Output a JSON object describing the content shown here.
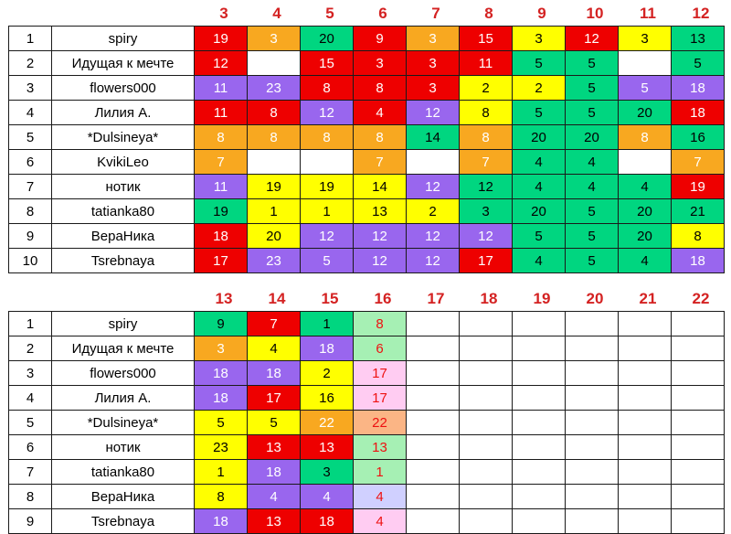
{
  "colors": {
    "R": "#ee0000",
    "O": "#f8a820",
    "G": "#00d680",
    "Y": "#ffff00",
    "P": "#9966ee",
    "W": "#ffffff",
    "LP": "#ffccf2",
    "LO": "#fbb585",
    "LL": "#d0d0ff",
    "LG": "#a6f0b4",
    "header_red": "#d42222"
  },
  "tables": [
    {
      "rounds": [
        "3",
        "4",
        "5",
        "6",
        "7",
        "8",
        "9",
        "10",
        "11",
        "12"
      ],
      "rows": [
        {
          "rank": "1",
          "name": "spiry",
          "cells": [
            [
              "19",
              "R"
            ],
            [
              "3",
              "O"
            ],
            [
              "20",
              "G"
            ],
            [
              "9",
              "R"
            ],
            [
              "3",
              "O"
            ],
            [
              "15",
              "R"
            ],
            [
              "3",
              "Y"
            ],
            [
              "12",
              "R"
            ],
            [
              "3",
              "Y"
            ],
            [
              "13",
              "G"
            ]
          ]
        },
        {
          "rank": "2",
          "name": "Идущая к мечте",
          "cells": [
            [
              "12",
              "R"
            ],
            [
              "",
              "W"
            ],
            [
              "15",
              "R"
            ],
            [
              "3",
              "R"
            ],
            [
              "3",
              "R"
            ],
            [
              "11",
              "R"
            ],
            [
              "5",
              "G"
            ],
            [
              "5",
              "G"
            ],
            [
              "",
              "W"
            ],
            [
              "5",
              "G"
            ]
          ]
        },
        {
          "rank": "3",
          "name": "flowers000",
          "cells": [
            [
              "11",
              "P"
            ],
            [
              "23",
              "P"
            ],
            [
              "8",
              "R"
            ],
            [
              "8",
              "R"
            ],
            [
              "3",
              "R"
            ],
            [
              "2",
              "Y"
            ],
            [
              "2",
              "Y"
            ],
            [
              "5",
              "G"
            ],
            [
              "5",
              "P"
            ],
            [
              "18",
              "P"
            ]
          ]
        },
        {
          "rank": "4",
          "name": "Лилия А.",
          "cells": [
            [
              "11",
              "R"
            ],
            [
              "8",
              "R"
            ],
            [
              "12",
              "P"
            ],
            [
              "4",
              "R"
            ],
            [
              "12",
              "P"
            ],
            [
              "8",
              "Y"
            ],
            [
              "5",
              "G"
            ],
            [
              "5",
              "G"
            ],
            [
              "20",
              "G"
            ],
            [
              "18",
              "R"
            ]
          ]
        },
        {
          "rank": "5",
          "name": "*Dulsineya*",
          "cells": [
            [
              "8",
              "O"
            ],
            [
              "8",
              "O"
            ],
            [
              "8",
              "O"
            ],
            [
              "8",
              "O"
            ],
            [
              "14",
              "G"
            ],
            [
              "8",
              "O"
            ],
            [
              "20",
              "G"
            ],
            [
              "20",
              "G"
            ],
            [
              "8",
              "O"
            ],
            [
              "16",
              "G"
            ]
          ]
        },
        {
          "rank": "6",
          "name": "KvikiLeo",
          "cells": [
            [
              "7",
              "O"
            ],
            [
              "",
              "W"
            ],
            [
              "",
              "W"
            ],
            [
              "7",
              "O"
            ],
            [
              "",
              "W"
            ],
            [
              "7",
              "O"
            ],
            [
              "4",
              "G"
            ],
            [
              "4",
              "G"
            ],
            [
              "",
              "W"
            ],
            [
              "7",
              "O"
            ]
          ]
        },
        {
          "rank": "7",
          "name": "нотик",
          "cells": [
            [
              "11",
              "P"
            ],
            [
              "19",
              "Y"
            ],
            [
              "19",
              "Y"
            ],
            [
              "14",
              "Y"
            ],
            [
              "12",
              "P"
            ],
            [
              "12",
              "G"
            ],
            [
              "4",
              "G"
            ],
            [
              "4",
              "G"
            ],
            [
              "4",
              "G"
            ],
            [
              "19",
              "R"
            ]
          ]
        },
        {
          "rank": "8",
          "name": "tatianka80",
          "cells": [
            [
              "19",
              "G"
            ],
            [
              "1",
              "Y"
            ],
            [
              "1",
              "Y"
            ],
            [
              "13",
              "Y"
            ],
            [
              "2",
              "Y"
            ],
            [
              "3",
              "G"
            ],
            [
              "20",
              "G"
            ],
            [
              "5",
              "G"
            ],
            [
              "20",
              "G"
            ],
            [
              "21",
              "G"
            ]
          ]
        },
        {
          "rank": "9",
          "name": "ВераНика",
          "cells": [
            [
              "18",
              "R"
            ],
            [
              "20",
              "Y"
            ],
            [
              "12",
              "P"
            ],
            [
              "12",
              "P"
            ],
            [
              "12",
              "P"
            ],
            [
              "12",
              "P"
            ],
            [
              "5",
              "G"
            ],
            [
              "5",
              "G"
            ],
            [
              "20",
              "G"
            ],
            [
              "8",
              "Y"
            ]
          ]
        },
        {
          "rank": "10",
          "name": "Tsrebnaya",
          "cells": [
            [
              "17",
              "R"
            ],
            [
              "23",
              "P"
            ],
            [
              "5",
              "P"
            ],
            [
              "12",
              "P"
            ],
            [
              "12",
              "P"
            ],
            [
              "17",
              "R"
            ],
            [
              "4",
              "G"
            ],
            [
              "5",
              "G"
            ],
            [
              "4",
              "G"
            ],
            [
              "18",
              "P"
            ]
          ]
        }
      ]
    },
    {
      "rounds": [
        "13",
        "14",
        "15",
        "16",
        "17",
        "18",
        "19",
        "20",
        "21",
        "22"
      ],
      "rows": [
        {
          "rank": "1",
          "name": "spiry",
          "cells": [
            [
              "9",
              "G"
            ],
            [
              "7",
              "R"
            ],
            [
              "1",
              "G"
            ],
            [
              "8",
              "LG"
            ],
            [
              "",
              "W"
            ],
            [
              "",
              "W"
            ],
            [
              "",
              "W"
            ],
            [
              "",
              "W"
            ],
            [
              "",
              "W"
            ],
            [
              "",
              "W"
            ]
          ]
        },
        {
          "rank": "2",
          "name": "Идущая к мечте",
          "cells": [
            [
              "3",
              "O"
            ],
            [
              "4",
              "Y"
            ],
            [
              "18",
              "P"
            ],
            [
              "6",
              "LG"
            ],
            [
              "",
              "W"
            ],
            [
              "",
              "W"
            ],
            [
              "",
              "W"
            ],
            [
              "",
              "W"
            ],
            [
              "",
              "W"
            ],
            [
              "",
              "W"
            ]
          ]
        },
        {
          "rank": "3",
          "name": "flowers000",
          "cells": [
            [
              "18",
              "P"
            ],
            [
              "18",
              "P"
            ],
            [
              "2",
              "Y"
            ],
            [
              "17",
              "LP"
            ],
            [
              "",
              "W"
            ],
            [
              "",
              "W"
            ],
            [
              "",
              "W"
            ],
            [
              "",
              "W"
            ],
            [
              "",
              "W"
            ],
            [
              "",
              "W"
            ]
          ]
        },
        {
          "rank": "4",
          "name": "Лилия А.",
          "cells": [
            [
              "18",
              "P"
            ],
            [
              "17",
              "R"
            ],
            [
              "16",
              "Y"
            ],
            [
              "17",
              "LP"
            ],
            [
              "",
              "W"
            ],
            [
              "",
              "W"
            ],
            [
              "",
              "W"
            ],
            [
              "",
              "W"
            ],
            [
              "",
              "W"
            ],
            [
              "",
              "W"
            ]
          ]
        },
        {
          "rank": "5",
          "name": "*Dulsineya*",
          "cells": [
            [
              "5",
              "Y"
            ],
            [
              "5",
              "Y"
            ],
            [
              "22",
              "O"
            ],
            [
              "22",
              "LO"
            ],
            [
              "",
              "W"
            ],
            [
              "",
              "W"
            ],
            [
              "",
              "W"
            ],
            [
              "",
              "W"
            ],
            [
              "",
              "W"
            ],
            [
              "",
              "W"
            ]
          ]
        },
        {
          "rank": "6",
          "name": "нотик",
          "cells": [
            [
              "23",
              "Y"
            ],
            [
              "13",
              "R"
            ],
            [
              "13",
              "R"
            ],
            [
              "13",
              "LG"
            ],
            [
              "",
              "W"
            ],
            [
              "",
              "W"
            ],
            [
              "",
              "W"
            ],
            [
              "",
              "W"
            ],
            [
              "",
              "W"
            ],
            [
              "",
              "W"
            ]
          ]
        },
        {
          "rank": "7",
          "name": "tatianka80",
          "cells": [
            [
              "1",
              "Y"
            ],
            [
              "18",
              "P"
            ],
            [
              "3",
              "G"
            ],
            [
              "1",
              "LG"
            ],
            [
              "",
              "W"
            ],
            [
              "",
              "W"
            ],
            [
              "",
              "W"
            ],
            [
              "",
              "W"
            ],
            [
              "",
              "W"
            ],
            [
              "",
              "W"
            ]
          ]
        },
        {
          "rank": "8",
          "name": "ВераНика",
          "cells": [
            [
              "8",
              "Y"
            ],
            [
              "4",
              "P"
            ],
            [
              "4",
              "P"
            ],
            [
              "4",
              "LL"
            ],
            [
              "",
              "W"
            ],
            [
              "",
              "W"
            ],
            [
              "",
              "W"
            ],
            [
              "",
              "W"
            ],
            [
              "",
              "W"
            ],
            [
              "",
              "W"
            ]
          ]
        },
        {
          "rank": "9",
          "name": "Tsrebnaya",
          "cells": [
            [
              "18",
              "P"
            ],
            [
              "13",
              "R"
            ],
            [
              "18",
              "R"
            ],
            [
              "4",
              "LP"
            ],
            [
              "",
              "W"
            ],
            [
              "",
              "W"
            ],
            [
              "",
              "W"
            ],
            [
              "",
              "W"
            ],
            [
              "",
              "W"
            ],
            [
              "",
              "W"
            ]
          ]
        }
      ]
    }
  ]
}
